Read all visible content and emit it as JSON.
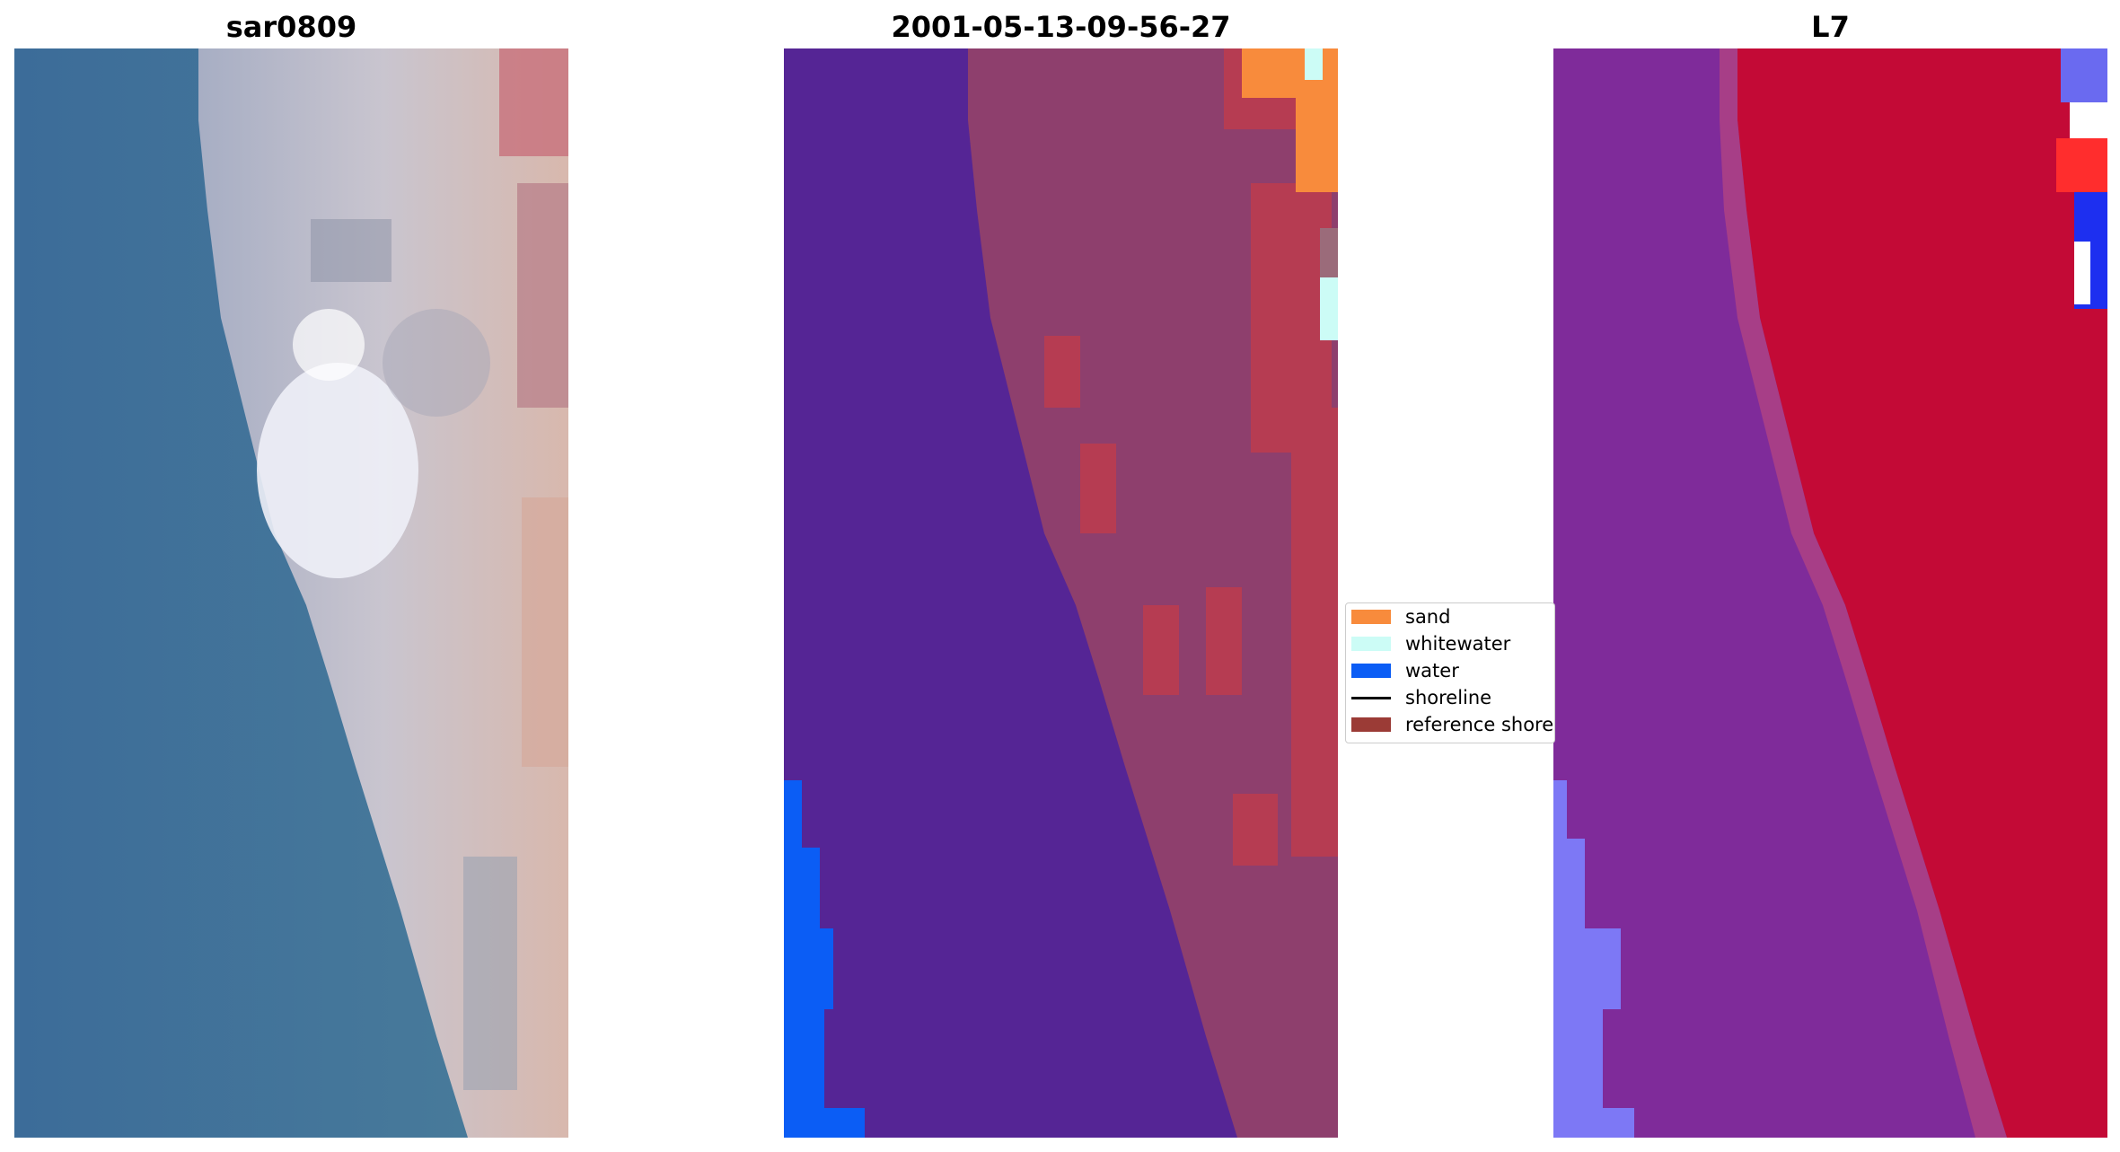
{
  "panels": [
    {
      "title": "sar0809"
    },
    {
      "title": "2001-05-13-09-56-27"
    },
    {
      "title": "L7"
    }
  ],
  "legend": {
    "items": [
      {
        "label": "sand",
        "kind": "patch",
        "color": "#f88b3c"
      },
      {
        "label": "whitewater",
        "kind": "patch",
        "color": "#ccfcf6"
      },
      {
        "label": "water",
        "kind": "patch",
        "color": "#0b5df5"
      },
      {
        "label": "shoreline",
        "kind": "line",
        "color": "#000000"
      },
      {
        "label": "reference shoreline",
        "kind": "patch",
        "color": "#9b3b36"
      }
    ]
  },
  "colors": {
    "sar_water": "#3f6f97",
    "sar_land": "#b9b4c4",
    "class_water_other": "#552595",
    "class_water": "#0b5df5",
    "class_land": "#8e3f6d",
    "class_reference": "#b63c52",
    "class_sand": "#f88b3c",
    "class_whitewater": "#ccfcf6",
    "l7_water": "#7f2b9a",
    "l7_land": "#c30a36",
    "l7_lightblue": "#7d78f5"
  }
}
